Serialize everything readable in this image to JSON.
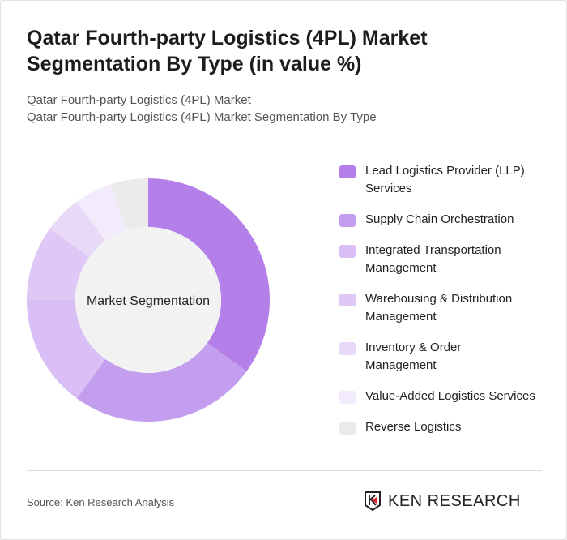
{
  "title": "Qatar Fourth-party Logistics (4PL) Market Segmentation By Type (in value %)",
  "subtitle1": "Qatar Fourth-party Logistics (4PL) Market",
  "subtitle2": "Qatar Fourth-party Logistics (4PL) Market Segmentation By Type",
  "source": "Source: Ken Research Analysis",
  "logo": "KEN RESEARCH",
  "chart_data": {
    "type": "pie",
    "donut": true,
    "center_label": "Market Segmentation",
    "legend_position": "right",
    "categories": [
      "Lead Logistics Provider (LLP) Services",
      "Supply Chain Orchestration",
      "Integrated Transportation Management",
      "Warehousing & Distribution Management",
      "Inventory & Order Management",
      "Value-Added Logistics Services",
      "Reverse Logistics"
    ],
    "values": [
      35,
      25,
      15,
      10,
      5,
      5,
      5
    ],
    "colors": [
      "#b57fea",
      "#c49eee",
      "#d9bff5",
      "#dfc8f6",
      "#e8d9f8",
      "#f2ebfb",
      "#ebebeb"
    ]
  }
}
